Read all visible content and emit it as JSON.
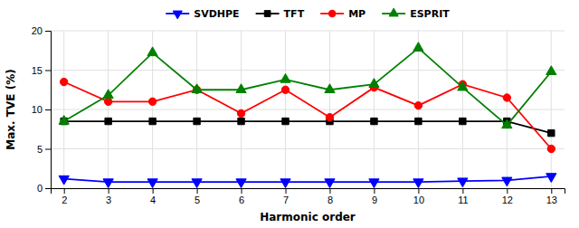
{
  "chart_data": {
    "type": "line",
    "xlabel": "Harmonic order",
    "ylabel": "Max. TVE (%)",
    "x": [
      2,
      3,
      4,
      5,
      6,
      7,
      8,
      9,
      10,
      11,
      12,
      13
    ],
    "series": [
      {
        "name": "SVDHPE",
        "color": "#0000ff",
        "marker": "triangle-down",
        "values": [
          1.2,
          0.8,
          0.8,
          0.8,
          0.8,
          0.8,
          0.8,
          0.8,
          0.8,
          0.9,
          1.0,
          1.5
        ]
      },
      {
        "name": "TFT",
        "color": "#000000",
        "marker": "square",
        "values": [
          8.5,
          8.5,
          8.5,
          8.5,
          8.5,
          8.5,
          8.5,
          8.5,
          8.5,
          8.5,
          8.5,
          7.0
        ]
      },
      {
        "name": "MP",
        "color": "#ff0000",
        "marker": "circle",
        "values": [
          13.5,
          11.0,
          11.0,
          12.5,
          9.5,
          12.5,
          9.0,
          12.8,
          10.5,
          13.2,
          11.5,
          5.0
        ]
      },
      {
        "name": "ESPRIT",
        "color": "#008000",
        "marker": "triangle-up",
        "values": [
          8.5,
          11.8,
          17.2,
          12.5,
          12.5,
          13.8,
          12.5,
          13.2,
          17.8,
          12.8,
          8.0,
          14.8
        ]
      }
    ],
    "xlim": [
      1.7,
      13.3
    ],
    "xticks": [
      2,
      3,
      4,
      5,
      6,
      7,
      8,
      9,
      10,
      11,
      12,
      13
    ],
    "ylim": [
      0,
      20
    ],
    "yticks": [
      0,
      5,
      10,
      15,
      20
    ],
    "grid": true,
    "legend": "top"
  }
}
